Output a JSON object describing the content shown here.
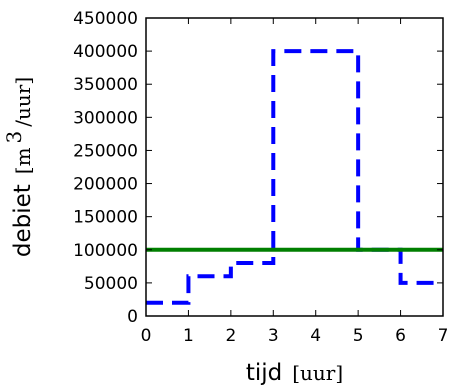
{
  "chart_data": {
    "type": "line",
    "xlabel": "tijd",
    "xlabel_unit": "[uur]",
    "ylabel": "debiet",
    "ylabel_unit_open": "[m",
    "ylabel_unit_sup": "3",
    "ylabel_unit_close": "/uur]",
    "xlim": [
      0,
      7
    ],
    "ylim": [
      0,
      450000
    ],
    "x_ticks": [
      0,
      1,
      2,
      3,
      4,
      5,
      6,
      7
    ],
    "y_ticks": [
      0,
      50000,
      100000,
      150000,
      200000,
      250000,
      300000,
      350000,
      400000,
      450000
    ],
    "x_tick_labels": [
      "0",
      "1",
      "2",
      "3",
      "4",
      "5",
      "6",
      "7"
    ],
    "y_tick_labels": [
      "0",
      "50000",
      "100000",
      "150000",
      "200000",
      "250000",
      "300000",
      "350000",
      "400000",
      "450000"
    ],
    "grid": false,
    "series": [
      {
        "style": "dashed-step",
        "color": "#0000ff",
        "x": [
          0,
          1,
          1,
          2,
          2,
          3,
          3,
          5,
          5,
          6,
          6,
          7
        ],
        "y": [
          20000,
          20000,
          60000,
          60000,
          80000,
          80000,
          400000,
          400000,
          100000,
          100000,
          50000,
          50000
        ]
      },
      {
        "style": "solid",
        "color": "#007f00",
        "x": [
          0,
          7
        ],
        "y": [
          100000,
          100000
        ]
      }
    ]
  }
}
